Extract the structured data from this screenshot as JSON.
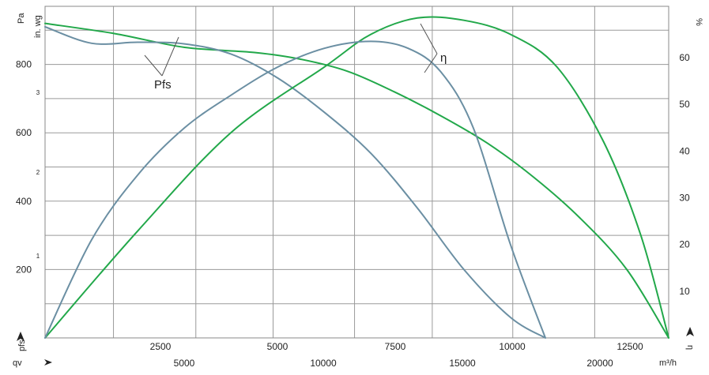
{
  "chart_data": {
    "type": "line",
    "title": "",
    "units": {
      "pressure": "Pa",
      "pressure_alt": "in. wg",
      "efficiency": "%",
      "flow_metric": "m³/h"
    },
    "axis_symbols": {
      "pressure": "pfs",
      "flow": "qv",
      "efficiency": "η"
    },
    "x_axis_cfm": {
      "ticks": [
        2500,
        5000,
        7500,
        10000,
        12500
      ],
      "labels": [
        "2500",
        "5000",
        "7500",
        "10000",
        "12500"
      ],
      "range": [
        0,
        13400
      ]
    },
    "x_axis_m3h": {
      "ticks": [
        5000,
        10000,
        15000,
        20000
      ],
      "labels": [
        "5000",
        "10000",
        "15000",
        "20000"
      ]
    },
    "y_axis_pa": {
      "ticks": [
        200,
        400,
        600,
        800
      ],
      "labels": [
        "200",
        "400",
        "600",
        "800"
      ],
      "range": [
        0,
        970
      ]
    },
    "y_axis_inwg": {
      "ticks": [
        1,
        2,
        3
      ],
      "labels": [
        "1",
        "2",
        "3"
      ]
    },
    "y_axis_eff": {
      "ticks": [
        10,
        20,
        30,
        40,
        50,
        60
      ],
      "labels": [
        "10",
        "20",
        "30",
        "40",
        "50",
        "60"
      ],
      "range": [
        0,
        71
      ]
    },
    "grid": true,
    "annotations": {
      "pressure_label": "Pfs",
      "efficiency_label": "η"
    },
    "series": [
      {
        "kind": "pressure",
        "color": "#22a84a",
        "x": [
          0,
          1500,
          3000,
          4500,
          5500,
          6500,
          7500,
          8500,
          9500,
          10500,
          11500,
          12500,
          13400
        ],
        "y": [
          920,
          890,
          850,
          835,
          815,
          780,
          720,
          650,
          570,
          470,
          350,
          200,
          0
        ]
      },
      {
        "kind": "pressure",
        "color": "#6b8fa3",
        "x": [
          0,
          1000,
          2000,
          3000,
          4000,
          5000,
          6000,
          7000,
          8000,
          9000,
          10000,
          10750
        ],
        "y": [
          910,
          862,
          865,
          860,
          830,
          760,
          660,
          540,
          380,
          200,
          60,
          0
        ]
      },
      {
        "kind": "efficiency",
        "color": "#22a84a",
        "x": [
          0,
          2000,
          4000,
          6000,
          7000,
          8000,
          9000,
          10000,
          11000,
          12000,
          12800,
          13400
        ],
        "y": [
          0,
          23,
          44,
          58,
          65,
          68.5,
          68,
          65,
          58,
          42,
          22,
          0
        ]
      },
      {
        "kind": "efficiency",
        "color": "#6b8fa3",
        "x": [
          0,
          1000,
          2000,
          3000,
          4000,
          5000,
          6000,
          7000,
          7800,
          8500,
          9200,
          10000,
          10750
        ],
        "y": [
          0,
          21,
          35,
          45,
          52,
          58,
          62,
          63.5,
          62,
          57,
          45,
          20,
          0
        ]
      }
    ]
  }
}
